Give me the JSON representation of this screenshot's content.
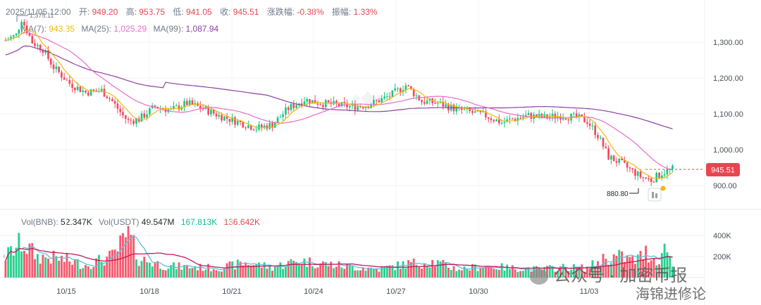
{
  "header": {
    "datetime": "2025/11/05 12:00",
    "open_label": "开:",
    "open": "949.20",
    "high_label": "高:",
    "high": "953.75",
    "low_label": "低:",
    "low": "941.05",
    "close_label": "收:",
    "close": "945.51",
    "change_label": "涨跌幅:",
    "change": "-0.38%",
    "amp_label": "振幅:",
    "amp": "1.33%"
  },
  "ma": {
    "ma7_label": "MA(7):",
    "ma7": "943.35",
    "ma25_label": "MA(25):",
    "ma25": "1,025.29",
    "ma99_label": "MA(99):",
    "ma99": "1,087.94"
  },
  "volume_legend": {
    "vol_bnb_label": "Vol(BNB):",
    "vol_bnb": "52.347K",
    "vol_usdt_label": "Vol(USDT)",
    "vol_usdt": "49.547M",
    "ma_a": "167.813K",
    "ma_b": "136.642K"
  },
  "annotations": {
    "max_label": "1,375.11",
    "min_label": "880.80",
    "current_price": "945.51"
  },
  "watermark": {
    "line1": "公众号 · 加密币报",
    "line2": "海锦进修论"
  },
  "colors": {
    "up": "#0ecb81",
    "down": "#f6465d",
    "ma7": "#f0b90b",
    "ma25": "#e86cc6",
    "ma99": "#8b3fa3",
    "vol_ma_a": "#5bc0de",
    "vol_ma_b": "#c2185b"
  },
  "chart_data": {
    "type": "candlestick",
    "price_axis": {
      "ticks": [
        "1,300.00",
        "1,200.00",
        "1,100.00",
        "1,000.00",
        "900.00"
      ],
      "ylim": [
        830,
        1400
      ]
    },
    "volume_axis": {
      "ticks": [
        "400K",
        "200K"
      ],
      "ylim": [
        0,
        500
      ]
    },
    "x_ticks": [
      "10/15",
      "10/18",
      "10/21",
      "10/24",
      "10/27",
      "10/30",
      "11/03"
    ],
    "price_anchors": [
      [
        0,
        1305
      ],
      [
        4,
        1320
      ],
      [
        6,
        1365
      ],
      [
        10,
        1300
      ],
      [
        14,
        1280
      ],
      [
        18,
        1230
      ],
      [
        24,
        1185
      ],
      [
        30,
        1160
      ],
      [
        36,
        1165
      ],
      [
        40,
        1135
      ],
      [
        44,
        1095
      ],
      [
        46,
        1080
      ],
      [
        50,
        1085
      ],
      [
        56,
        1120
      ],
      [
        62,
        1110
      ],
      [
        68,
        1130
      ],
      [
        74,
        1115
      ],
      [
        80,
        1095
      ],
      [
        88,
        1075
      ],
      [
        94,
        1060
      ],
      [
        100,
        1070
      ],
      [
        106,
        1115
      ],
      [
        112,
        1140
      ],
      [
        118,
        1130
      ],
      [
        124,
        1125
      ],
      [
        130,
        1120
      ],
      [
        136,
        1125
      ],
      [
        144,
        1150
      ],
      [
        150,
        1180
      ],
      [
        156,
        1135
      ],
      [
        162,
        1130
      ],
      [
        168,
        1115
      ],
      [
        174,
        1105
      ],
      [
        180,
        1095
      ],
      [
        186,
        1075
      ],
      [
        190,
        1085
      ],
      [
        196,
        1095
      ],
      [
        202,
        1090
      ],
      [
        208,
        1095
      ],
      [
        214,
        1090
      ],
      [
        218,
        1080
      ],
      [
        222,
        1040
      ],
      [
        226,
        980
      ],
      [
        230,
        965
      ],
      [
        234,
        945
      ],
      [
        238,
        925
      ],
      [
        242,
        915
      ],
      [
        246,
        935
      ],
      [
        250,
        945.51
      ]
    ],
    "volume_anchors": [
      [
        0,
        200
      ],
      [
        6,
        330
      ],
      [
        12,
        200
      ],
      [
        20,
        180
      ],
      [
        30,
        120
      ],
      [
        40,
        200
      ],
      [
        46,
        400
      ],
      [
        50,
        180
      ],
      [
        60,
        110
      ],
      [
        70,
        100
      ],
      [
        80,
        90
      ],
      [
        90,
        140
      ],
      [
        100,
        100
      ],
      [
        110,
        160
      ],
      [
        120,
        130
      ],
      [
        130,
        100
      ],
      [
        140,
        80
      ],
      [
        150,
        130
      ],
      [
        160,
        150
      ],
      [
        170,
        80
      ],
      [
        180,
        110
      ],
      [
        190,
        90
      ],
      [
        200,
        80
      ],
      [
        210,
        100
      ],
      [
        218,
        90
      ],
      [
        224,
        180
      ],
      [
        230,
        200
      ],
      [
        236,
        160
      ],
      [
        240,
        240
      ],
      [
        244,
        160
      ],
      [
        248,
        300
      ],
      [
        250,
        100
      ]
    ],
    "extremes": {
      "high": 1375.11,
      "low": 880.8,
      "last": 945.51
    }
  }
}
